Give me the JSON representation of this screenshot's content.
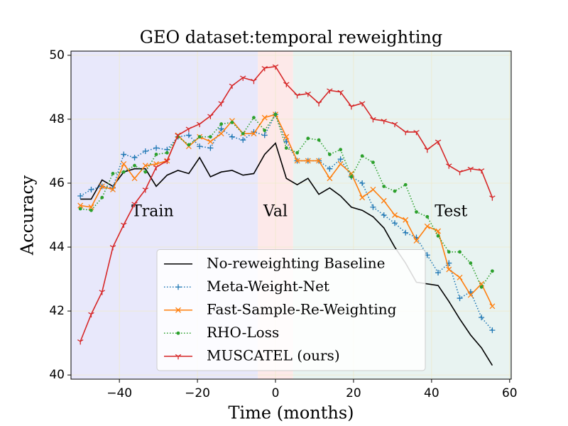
{
  "chart_data": {
    "type": "line",
    "title": "GEO dataset:temporal reweighting",
    "xlabel": "Time (months)",
    "ylabel": "Accuracy",
    "x": [
      -50,
      -47.22,
      -44.44,
      -41.67,
      -38.89,
      -36.11,
      -33.33,
      -30.56,
      -27.78,
      -25,
      -22.22,
      -19.44,
      -16.67,
      -13.89,
      -11.11,
      -8.33,
      -5.56,
      -2.78,
      0,
      2.78,
      5.56,
      8.33,
      11.11,
      13.89,
      16.67,
      19.44,
      22.22,
      25,
      27.78,
      30.56,
      33.33,
      36.11,
      38.89,
      41.67,
      44.44,
      47.22,
      50,
      52.78,
      55.56
    ],
    "series": [
      {
        "name": "No-reweighting Baseline",
        "color": "#000000",
        "style": "solid",
        "marker": "none",
        "values": [
          45.5,
          45.5,
          46.1,
          45.9,
          46.35,
          46.45,
          46.45,
          45.9,
          46.25,
          46.4,
          46.3,
          46.8,
          46.2,
          46.35,
          46.4,
          46.25,
          46.3,
          46.9,
          47.25,
          46.15,
          45.95,
          46.15,
          45.65,
          45.85,
          45.6,
          45.25,
          45.15,
          44.95,
          44.6,
          44.0,
          43.5,
          42.9,
          42.85,
          42.8,
          42.3,
          41.75,
          41.25,
          40.85,
          40.3
        ]
      },
      {
        "name": "Meta-Weight-Net",
        "color": "#1f77b4",
        "style": "dotted",
        "marker": "plus",
        "values": [
          45.6,
          45.8,
          45.9,
          45.85,
          46.9,
          46.8,
          47.0,
          47.1,
          47.05,
          47.45,
          47.5,
          47.15,
          47.1,
          47.7,
          47.45,
          47.35,
          47.6,
          47.5,
          48.15,
          47.3,
          46.7,
          46.7,
          46.7,
          46.45,
          46.75,
          46.2,
          46.0,
          45.25,
          45.0,
          44.75,
          44.45,
          44.3,
          43.75,
          43.2,
          43.5,
          42.4,
          42.6,
          41.8,
          41.4
        ]
      },
      {
        "name": "Fast-Sample-Re-Weighting",
        "color": "#ff7f0e",
        "style": "solid",
        "marker": "x",
        "values": [
          45.3,
          45.25,
          45.9,
          45.8,
          46.6,
          46.15,
          46.55,
          46.6,
          46.7,
          47.5,
          47.15,
          47.45,
          47.3,
          47.55,
          47.95,
          47.55,
          47.55,
          48.05,
          48.15,
          47.45,
          46.7,
          46.7,
          46.7,
          46.15,
          46.6,
          46.3,
          45.55,
          45.8,
          45.45,
          45.0,
          44.85,
          44.2,
          44.65,
          44.5,
          43.3,
          43.05,
          42.5,
          42.85,
          42.15
        ]
      },
      {
        "name": "RHO-Loss",
        "color": "#2ca02c",
        "style": "dotted",
        "marker": "dot",
        "values": [
          45.2,
          45.15,
          45.55,
          46.3,
          46.35,
          46.55,
          46.35,
          46.9,
          46.95,
          47.45,
          47.2,
          47.45,
          47.45,
          47.85,
          47.9,
          47.55,
          48.05,
          47.65,
          48.15,
          47.1,
          46.95,
          47.4,
          47.35,
          46.9,
          47.05,
          46.2,
          46.85,
          46.65,
          45.9,
          45.75,
          45.95,
          45.1,
          44.95,
          44.35,
          43.85,
          43.85,
          43.5,
          42.75,
          43.25
        ]
      },
      {
        "name": "MUSCATEL (ours)",
        "color": "#d62728",
        "style": "solid",
        "marker": "tri_down",
        "values": [
          41.05,
          41.9,
          42.6,
          44.0,
          44.7,
          45.35,
          45.8,
          46.5,
          46.7,
          47.5,
          47.7,
          47.85,
          48.1,
          48.5,
          49.05,
          49.3,
          49.2,
          49.6,
          49.65,
          49.1,
          48.75,
          48.8,
          48.5,
          48.9,
          48.85,
          48.4,
          48.5,
          48.0,
          47.95,
          47.85,
          47.6,
          47.6,
          47.05,
          47.3,
          46.55,
          46.35,
          46.45,
          46.4,
          45.55
        ]
      }
    ],
    "regions": [
      {
        "label": "Train",
        "xmin": -55,
        "xmax": -4.5,
        "color": "#e8e8fb",
        "label_x": -31.5,
        "label_y": 45.1
      },
      {
        "label": "Val",
        "xmin": -4.5,
        "xmax": 4.5,
        "color": "#fde9e9",
        "label_x": 0,
        "label_y": 45.1
      },
      {
        "label": "Test",
        "xmin": 4.5,
        "xmax": 65,
        "color": "#e8f3f1",
        "label_x": 45,
        "label_y": 45.1
      }
    ],
    "xlim": [
      -52.4,
      60.4
    ],
    "ylim": [
      39.87,
      50.13
    ],
    "xticks": [
      {
        "value": -40,
        "label": "−40"
      },
      {
        "value": -20,
        "label": "−20"
      },
      0,
      20,
      40,
      60
    ],
    "yticks": [
      40,
      42,
      44,
      46,
      48,
      50
    ],
    "grid": true,
    "legend": "lower center"
  }
}
